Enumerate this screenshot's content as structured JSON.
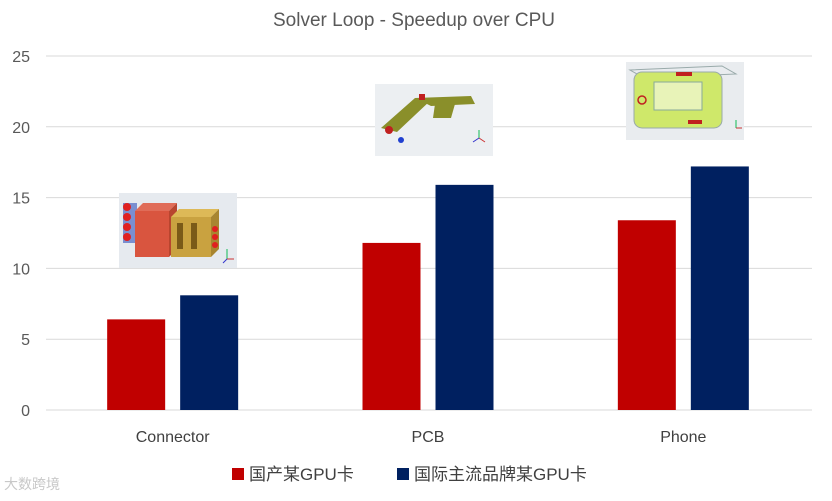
{
  "chart_data": {
    "type": "bar",
    "title": "Solver Loop - Speedup over CPU",
    "categories": [
      "Connector",
      "PCB",
      "Phone"
    ],
    "series": [
      {
        "name": "国产某GPU卡",
        "color": "#C00000",
        "values": [
          6.4,
          11.8,
          13.4
        ]
      },
      {
        "name": "国际主流品牌某GPU卡",
        "color": "#002060",
        "values": [
          8.1,
          15.9,
          17.2
        ]
      }
    ],
    "ylim": [
      0,
      25
    ],
    "yticks": [
      0,
      5,
      10,
      15,
      20,
      25
    ],
    "grid": true,
    "legend_position": "bottom"
  },
  "watermark": "大数跨境"
}
